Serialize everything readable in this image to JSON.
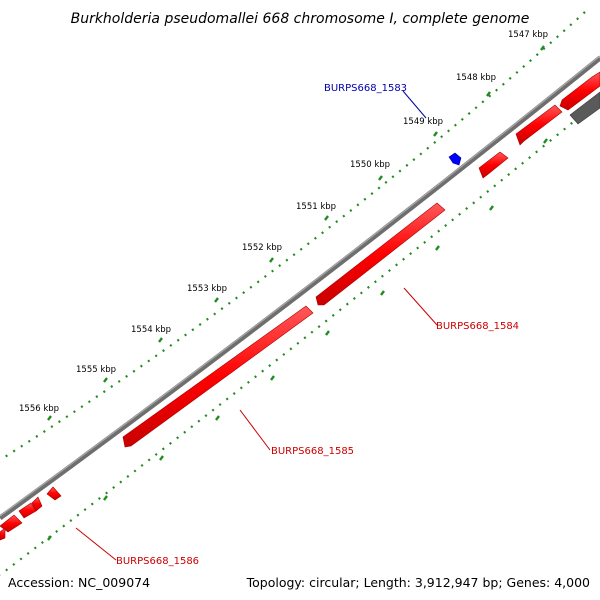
{
  "title": "Burkholderia pseudomallei 668 chromosome I, complete genome",
  "footer": {
    "accession": "Accession: NC_009074",
    "summary": "Topology: circular; Length: 3,912,947 bp; Genes: 4,000"
  },
  "ticks": [
    "1547 kbp",
    "1548 kbp",
    "1549 kbp",
    "1550 kbp",
    "1551 kbp",
    "1552 kbp",
    "1553 kbp",
    "1554 kbp",
    "1555 kbp",
    "1556 kbp"
  ],
  "genes": [
    {
      "label": "BURPS668_1583",
      "strand": "forward",
      "color": "#0000ff"
    },
    {
      "label": "BURPS668_1584",
      "strand": "reverse",
      "color": "#ff0000"
    },
    {
      "label": "BURPS668_1585",
      "strand": "reverse",
      "color": "#ff0000"
    },
    {
      "label": "BURPS668_1586",
      "strand": "reverse",
      "color": "#ff0000"
    }
  ],
  "colors": {
    "backbone": "#808080",
    "ticks": "#228b22",
    "reverse_genes": "#ff0000",
    "forward_gene": "#0000ff",
    "other_feature": "#696969"
  }
}
